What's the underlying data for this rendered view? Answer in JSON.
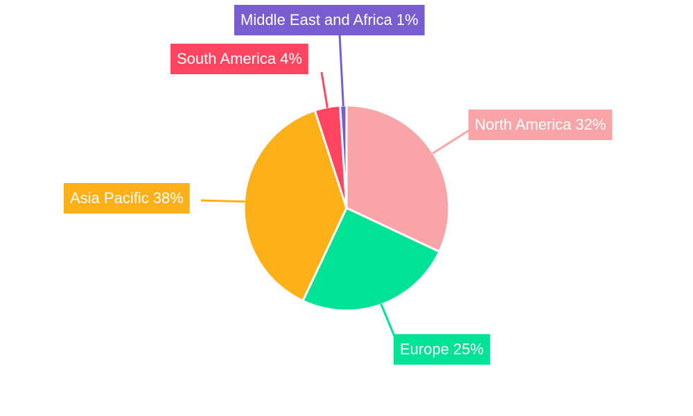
{
  "chart_data": {
    "type": "pie",
    "categories": [
      "North America",
      "Europe",
      "Asia Pacific",
      "South America",
      "Middle East and Africa"
    ],
    "values": [
      32,
      25,
      38,
      4,
      1
    ],
    "value_labels": [
      "32%",
      "25%",
      "38%",
      "4%",
      "1%"
    ],
    "colors": [
      "#f9a5a8",
      "#00e396",
      "#feb019",
      "#ff4560",
      "#775dd0"
    ]
  }
}
